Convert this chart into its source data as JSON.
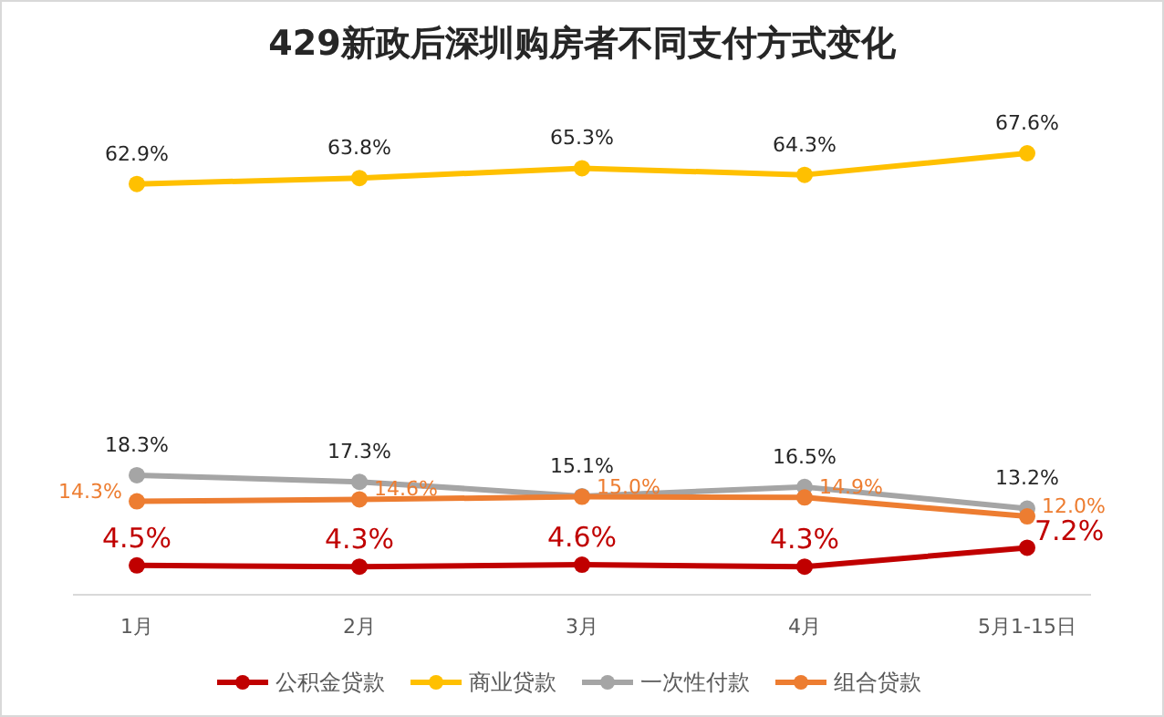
{
  "chart_data": {
    "type": "line",
    "title": "429新政后深圳购房者不同支付方式变化",
    "categories": [
      "1月",
      "2月",
      "3月",
      "4月",
      "5月1-15日"
    ],
    "series": [
      {
        "name": "公积金贷款",
        "color": "#c00000",
        "values": [
          4.5,
          4.3,
          4.6,
          4.3,
          7.2
        ],
        "value_labels": [
          "4.5%",
          "4.3%",
          "4.6%",
          "4.3%",
          "7.2%"
        ]
      },
      {
        "name": "商业贷款",
        "color": "#ffc000",
        "values": [
          62.9,
          63.8,
          65.3,
          64.3,
          67.6
        ],
        "value_labels": [
          "62.9%",
          "63.8%",
          "65.3%",
          "64.3%",
          "67.6%"
        ]
      },
      {
        "name": "一次性付款",
        "color": "#a5a5a5",
        "values": [
          18.3,
          17.3,
          15.1,
          16.5,
          13.2
        ],
        "value_labels": [
          "18.3%",
          "17.3%",
          "15.1%",
          "16.5%",
          "13.2%"
        ]
      },
      {
        "name": "组合贷款",
        "color": "#ed7d31",
        "values": [
          14.3,
          14.6,
          15.0,
          14.9,
          12.0
        ],
        "value_labels": [
          "14.3%",
          "14.6%",
          "15.0%",
          "14.9%",
          "12.0%"
        ]
      }
    ],
    "legend": "bottom",
    "marker": "circle",
    "line_style": "solid"
  }
}
